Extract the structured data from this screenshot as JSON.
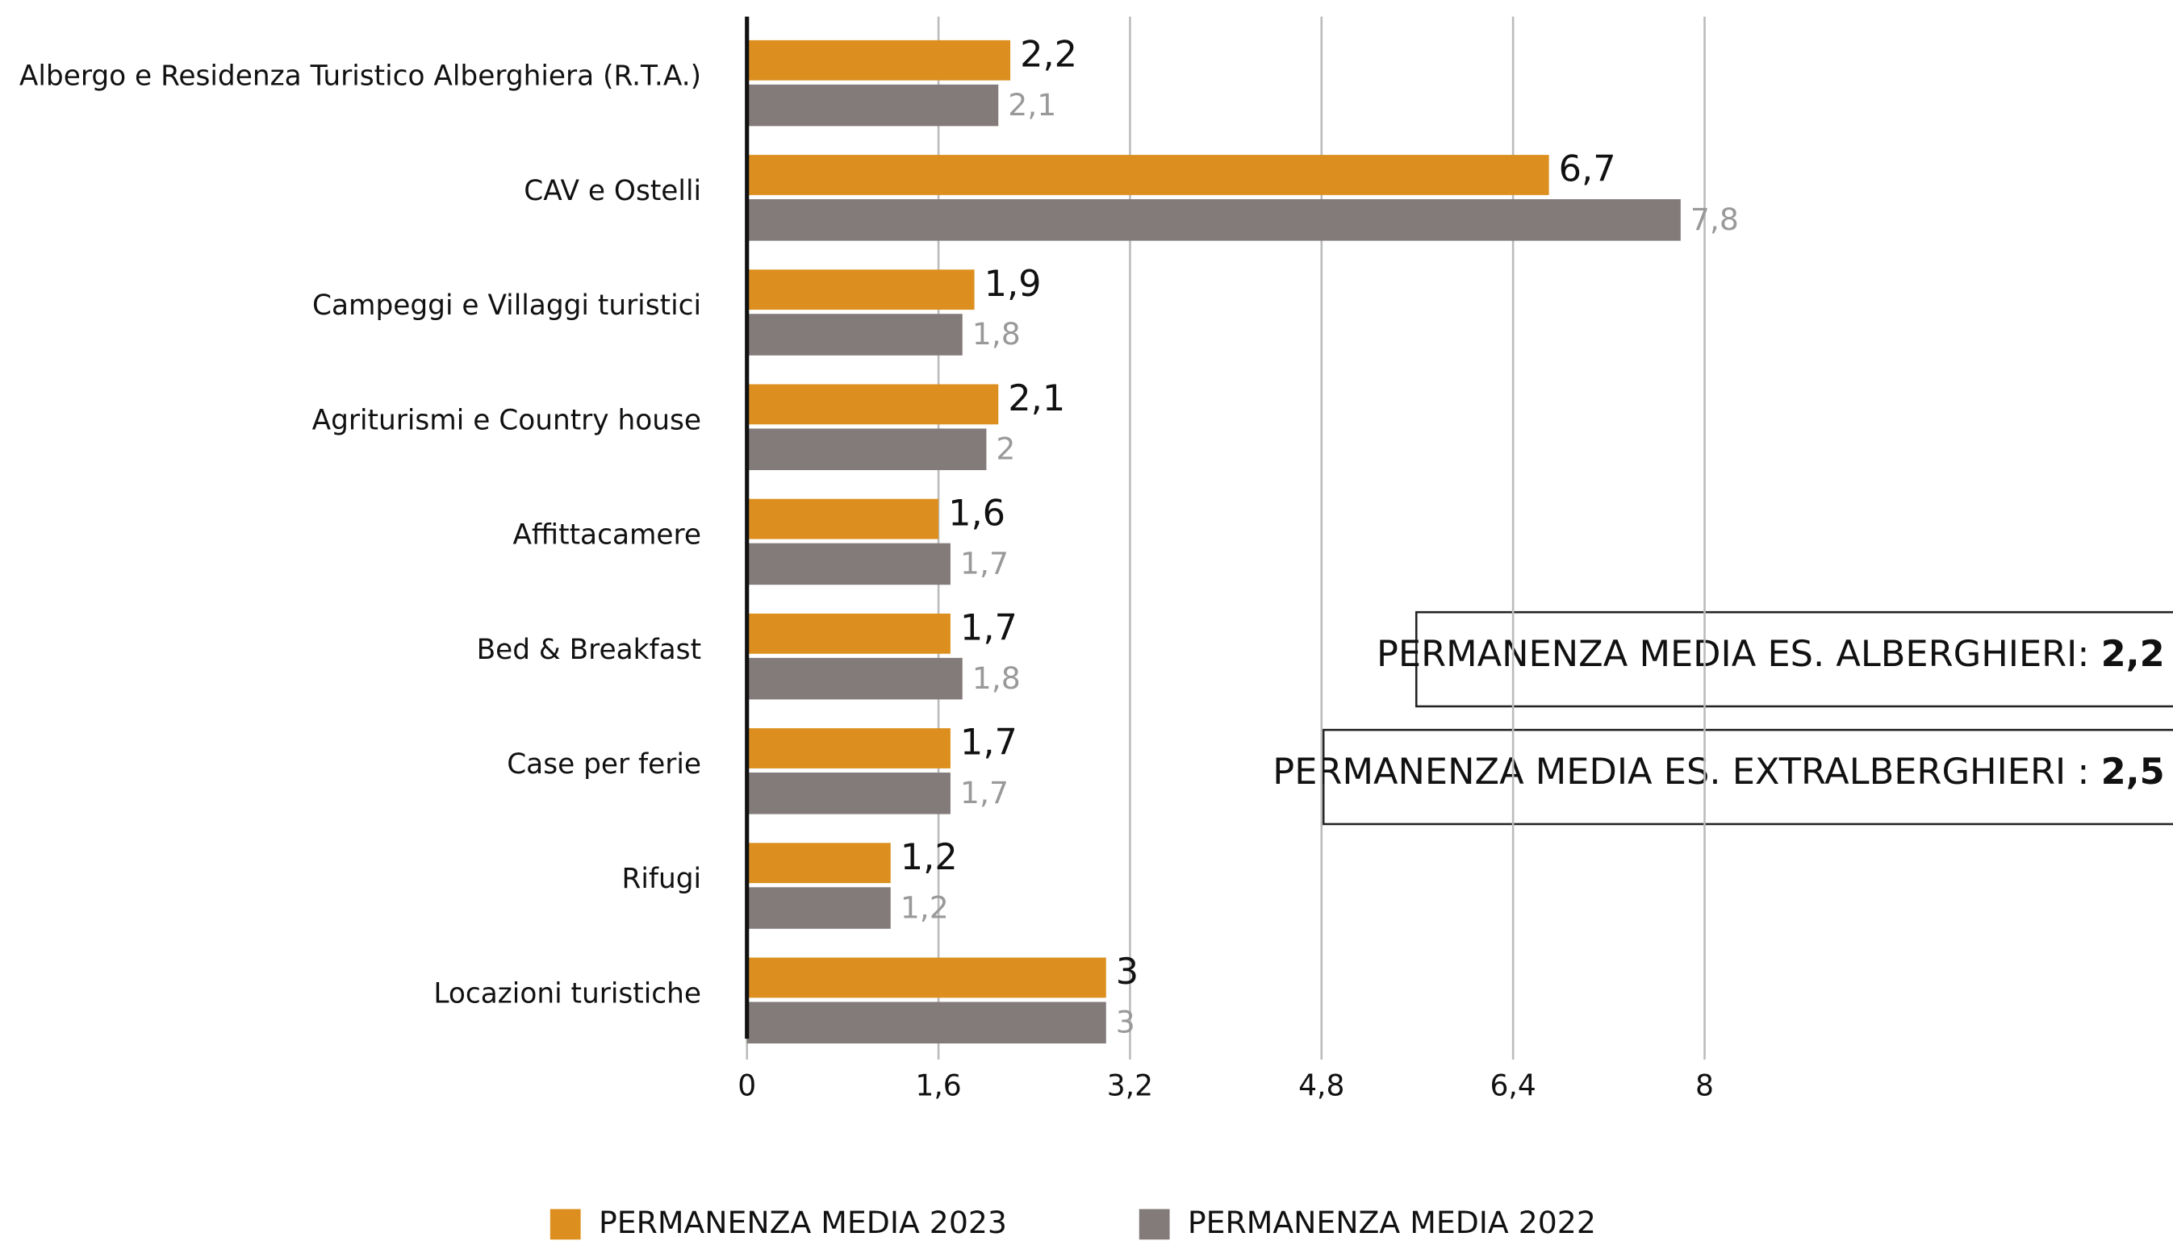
{
  "chart_data": {
    "type": "hbar",
    "categories": [
      "Albergo e Residenza Turistico Alberghiera (R.T.A.)",
      "CAV e Ostelli",
      "Campeggi e Villaggi turistici",
      "Agriturismi e Country house",
      "Affittacamere",
      "Bed & Breakfast",
      "Case per ferie",
      "Rifugi",
      "Locazioni turistiche"
    ],
    "series": [
      {
        "name": "PERMANENZA MEDIA 2023",
        "color": "#dc8f1e",
        "values": [
          2.2,
          6.7,
          1.9,
          2.1,
          1.6,
          1.7,
          1.7,
          1.2,
          3
        ],
        "value_labels": [
          "2,2",
          "6,7",
          "1,9",
          "2,1",
          "1,6",
          "1,7",
          "1,7",
          "1,2",
          "3"
        ]
      },
      {
        "name": "PERMANENZA MEDIA 2022",
        "color": "#837b7a",
        "values": [
          2.1,
          7.8,
          1.8,
          2,
          1.7,
          1.8,
          1.7,
          1.2,
          3
        ],
        "value_labels": [
          "2,1",
          "7,8",
          "1,8",
          "2",
          "1,7",
          "1,8",
          "1,7",
          "1,2",
          "3"
        ]
      }
    ],
    "xlim": [
      0,
      8
    ],
    "xticks": [
      0,
      {
        "value": 1.6,
        "label": "1,6"
      },
      {
        "value": 3.2,
        "label": "3,2"
      },
      {
        "value": 4.8,
        "label": "4,8"
      },
      {
        "value": 6.4,
        "label": "6,4"
      },
      8
    ],
    "grid": true,
    "annotations": [
      {
        "text": "PERMANENZA MEDIA ES. ALBERGHIERI:",
        "value": "2,2"
      },
      {
        "text": "PERMANENZA MEDIA ES. EXTRALBERGHIERI :",
        "value": "2,5"
      }
    ]
  }
}
